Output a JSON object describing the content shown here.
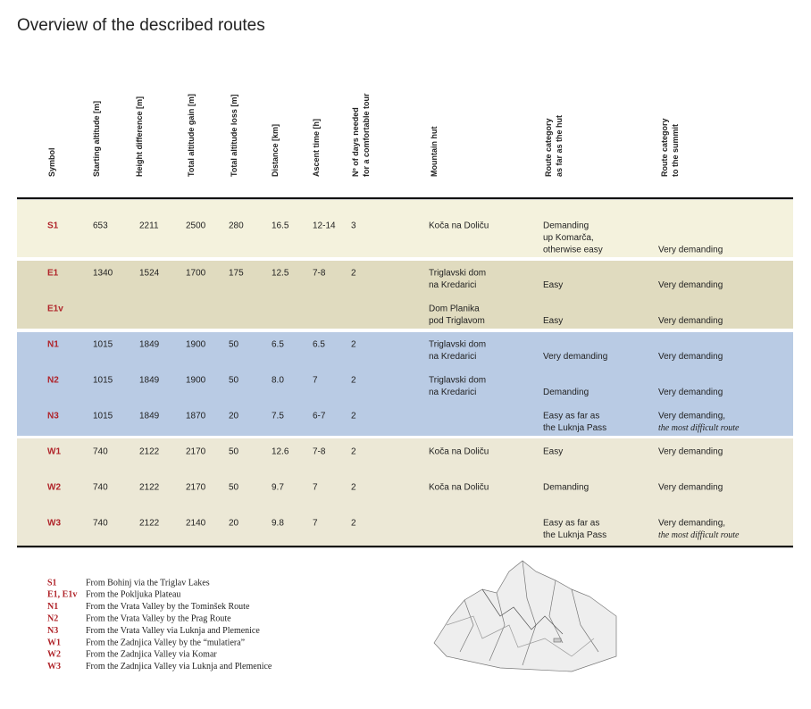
{
  "title": "Overview of the described routes",
  "table": {
    "headers": [
      [
        "Symbol"
      ],
      [
        "Starting altitude [m]"
      ],
      [
        "Height difference [m]"
      ],
      [
        "Total altitude gain [m]"
      ],
      [
        "Total altitude loss [m]"
      ],
      [
        "Distance [km]"
      ],
      [
        "Ascent time [h]"
      ],
      [
        "Nº  of days needed",
        "for a comfortable tour"
      ],
      [
        "Mountain hut"
      ],
      [
        "Route category",
        "as far as the hut"
      ],
      [
        "Route category",
        "to the summit"
      ]
    ],
    "groups": [
      {
        "rows": [
          {
            "cells": [
              "S1",
              653,
              2211,
              2500,
              280,
              16.5,
              "12-14",
              3
            ],
            "hut": [
              "Koča na Doliču"
            ],
            "category": [
              "Demanding",
              "up Komarča,",
              "otherwise easy"
            ],
            "summit": [
              "Very demanding"
            ]
          }
        ]
      },
      {
        "rows": [
          {
            "cells": [
              "E1",
              1340,
              1524,
              1700,
              175,
              12.5,
              "7-8",
              2
            ],
            "hut": [
              "Triglavski dom",
              "na Kredarici"
            ],
            "category": [
              "Easy"
            ],
            "summit": [
              "Very demanding"
            ]
          },
          {
            "cells": [
              "E1v"
            ],
            "hut": [
              "Dom Planika",
              "pod Triglavom"
            ],
            "category": [
              "Easy"
            ],
            "summit": [
              "Very demanding"
            ]
          }
        ]
      },
      {
        "rows": [
          {
            "cells": [
              "N1",
              1015,
              1849,
              1900,
              50,
              6.5,
              6.5,
              2
            ],
            "hut": [
              "Triglavski dom",
              "na Kredarici"
            ],
            "category": [
              "Very demanding"
            ],
            "summit": [
              "Very demanding"
            ]
          },
          {
            "cells": [
              "N2",
              1015,
              1849,
              1900,
              50,
              "8.0",
              7,
              2
            ],
            "hut": [
              "Triglavski dom",
              "na Kredarici"
            ],
            "category": [
              "Demanding"
            ],
            "summit": [
              "Very demanding"
            ]
          },
          {
            "cells": [
              "N3",
              1015,
              1849,
              1870,
              20,
              7.5,
              "6-7",
              2
            ],
            "hut": [],
            "category": [
              "Easy as far as",
              "the Luknja Pass"
            ],
            "summit": [
              "Very demanding,"
            ],
            "summit_note": "the most difficult route"
          }
        ]
      },
      {
        "rows": [
          {
            "cells": [
              "W1",
              740,
              2122,
              2170,
              50,
              12.6,
              "7-8",
              2
            ],
            "hut": [
              "Koča na Doliču"
            ],
            "category": [
              "Easy"
            ],
            "summit": [
              "Very demanding"
            ]
          },
          {
            "cells": [
              "W2",
              740,
              2122,
              2170,
              50,
              9.7,
              7,
              2
            ],
            "hut": [
              "Koča na Doliču"
            ],
            "category": [
              "Demanding"
            ],
            "summit": [
              "Very demanding"
            ]
          },
          {
            "cells": [
              "W3",
              740,
              2122,
              2140,
              20,
              9.8,
              7,
              2
            ],
            "hut": [],
            "category": [
              "Easy as far as",
              "the Luknja Pass"
            ],
            "summit": [
              "Very demanding,"
            ],
            "summit_note": "the most difficult route"
          }
        ]
      }
    ]
  },
  "legend": [
    {
      "symbol": "S1",
      "text": "From Bohinj via the Triglav Lakes"
    },
    {
      "symbol": "E1, E1v",
      "text": "From the Pokljuka Plateau"
    },
    {
      "symbol": "N1",
      "text": "From the Vrata Valley by the Tominšek Route"
    },
    {
      "symbol": "N2",
      "text": "From the Vrata Valley by the Prag Route"
    },
    {
      "symbol": "N3",
      "text": "From the Vrata Valley via Luknja and Plemenice"
    },
    {
      "symbol": "W1",
      "text": "From the Zadnjica Valley by the “mulatiera”"
    },
    {
      "symbol": "W2",
      "text": "From the Zadnjica Valley via Komar"
    },
    {
      "symbol": "W3",
      "text": "From the Zadnjica Valley via Luknja and Plemenice"
    }
  ]
}
